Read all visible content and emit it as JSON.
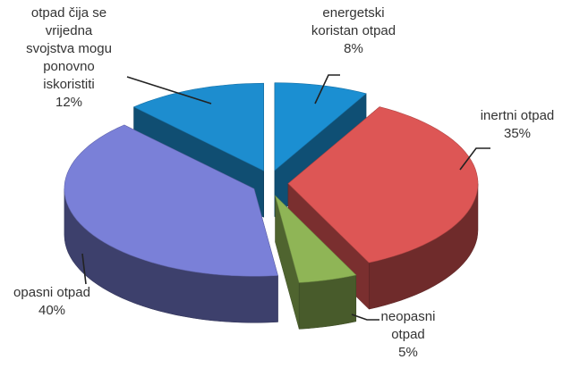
{
  "chart_data": {
    "type": "pie",
    "categories": [
      "energetski koristan otpad",
      "inertni otpad",
      "neopasni otpad",
      "opasni otpad",
      "otpad čija se vrijedna svojstva mogu ponovno iskoristiti"
    ],
    "values": [
      8,
      35,
      5,
      40,
      12
    ],
    "value_labels": [
      "8%",
      "35%",
      "5%",
      "40%",
      "12%"
    ],
    "colors": [
      "#1b8fd2",
      "#dd5655",
      "#8fb556",
      "#7a80d8",
      "#1d8dcf"
    ]
  }
}
